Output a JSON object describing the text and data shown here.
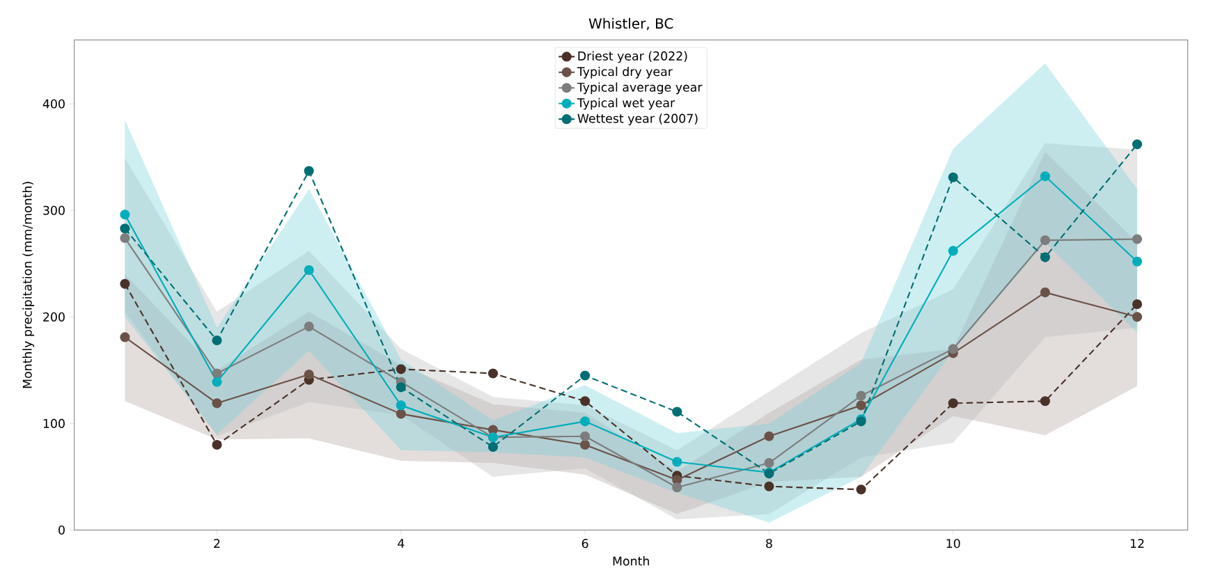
{
  "chart_data": {
    "type": "line",
    "title": "Whistler, BC",
    "xlabel": "Month",
    "ylabel": "Monthly precipitation (mm/month)",
    "x": [
      1,
      2,
      3,
      4,
      5,
      6,
      7,
      8,
      9,
      10,
      11,
      12
    ],
    "xlim": [
      0.45,
      12.55
    ],
    "ylim": [
      0,
      460
    ],
    "xticks": [
      2,
      4,
      6,
      8,
      10,
      12
    ],
    "yticks": [
      0,
      100,
      200,
      300,
      400
    ],
    "legend": "top",
    "marker": "circle",
    "grid": false,
    "series": [
      {
        "name": "Driest year (2022)",
        "color": "#4a3228",
        "line_style": "dashed",
        "values": [
          231,
          80,
          141,
          151,
          147,
          121,
          51,
          41,
          38,
          119,
          121,
          212
        ]
      },
      {
        "name": "Typical dry year",
        "color": "#6b5249",
        "line_style": "solid",
        "values": [
          181,
          119,
          146,
          109,
          94,
          80,
          47,
          88,
          117,
          166,
          223,
          200
        ],
        "lower": [
          121,
          85,
          86,
          65,
          63,
          52,
          15,
          45,
          50,
          107,
          89,
          135
        ],
        "upper": [
          240,
          150,
          205,
          155,
          118,
          110,
          55,
          110,
          160,
          170,
          355,
          270
        ]
      },
      {
        "name": "Typical average year",
        "color": "#7d7d7d",
        "line_style": "solid",
        "values": [
          274,
          147,
          191,
          139,
          87,
          88,
          40,
          63,
          126,
          170,
          272,
          273
        ],
        "lower": [
          205,
          88,
          120,
          108,
          50,
          58,
          10,
          15,
          68,
          82,
          181,
          190
        ],
        "upper": [
          349,
          205,
          262,
          170,
          125,
          117,
          75,
          130,
          185,
          226,
          363,
          357
        ]
      },
      {
        "name": "Typical wet year",
        "color": "#00aebb",
        "line_style": "solid",
        "values": [
          296,
          139,
          244,
          117,
          87,
          102,
          64,
          54,
          104,
          262,
          332,
          252
        ],
        "lower": [
          200,
          90,
          168,
          75,
          73,
          68,
          35,
          7,
          50,
          168,
          270,
          185
        ],
        "upper": [
          385,
          190,
          320,
          160,
          103,
          136,
          91,
          100,
          157,
          358,
          438,
          320
        ]
      },
      {
        "name": "Wettest year (2007)",
        "color": "#006f73",
        "line_style": "dashed",
        "values": [
          283,
          178,
          337,
          134,
          78,
          145,
          111,
          53,
          102,
          331,
          256,
          362
        ]
      }
    ]
  }
}
